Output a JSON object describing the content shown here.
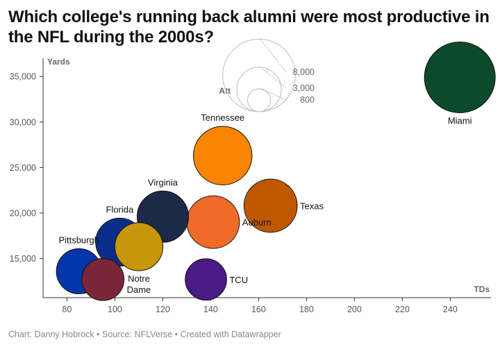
{
  "title": "Which college's running back alumni were most productive in the NFL during the 2000s?",
  "footer": "Chart: Danny Hobrock • Source: NFLVerse • Created with Datawrapper",
  "chart_data": {
    "type": "scatter",
    "title": "Which college's running back alumni were most productive in the NFL during the 2000s?",
    "xlabel": "TDs",
    "ylabel": "Yards",
    "xlim": [
      70,
      257
    ],
    "ylim": [
      10700,
      37000
    ],
    "x_ticks": [
      80,
      100,
      120,
      140,
      160,
      180,
      200,
      220,
      240
    ],
    "y_ticks": [
      15000,
      20000,
      25000,
      30000,
      35000
    ],
    "grid": false,
    "size_legend": {
      "title": "Att",
      "values": [
        8000,
        3000,
        800
      ],
      "labels": [
        "8,000",
        "3,000",
        "800"
      ]
    },
    "points": [
      {
        "label": "Miami",
        "x": 244,
        "y": 34900,
        "att": 7600,
        "color": "#0c4a2c",
        "label_pos": "below"
      },
      {
        "label": "Tennessee",
        "x": 145,
        "y": 26300,
        "att": 5200,
        "color": "#fb8500",
        "label_pos": "above"
      },
      {
        "label": "Texas",
        "x": 165,
        "y": 20800,
        "att": 4300,
        "color": "#c05800",
        "label_pos": "right"
      },
      {
        "label": "Virginia",
        "x": 120,
        "y": 19600,
        "att": 4000,
        "color": "#1c2a48",
        "label_pos": "above"
      },
      {
        "label": "Auburn",
        "x": 141,
        "y": 19000,
        "att": 4200,
        "color": "#f06a28",
        "label_pos": "right"
      },
      {
        "label": "Florida",
        "x": 102,
        "y": 16800,
        "att": 3500,
        "color": "#0a2e8a",
        "label_pos": "above"
      },
      {
        "label": "Notre Dame",
        "x": 110,
        "y": 16300,
        "att": 3500,
        "color": "#c8960a",
        "label_pos": "below"
      },
      {
        "label": "Pittsburgh",
        "x": 85,
        "y": 13600,
        "att": 3100,
        "color": "#0336a8",
        "label_pos": "above"
      },
      {
        "label": "",
        "x": 95,
        "y": 12700,
        "att": 2700,
        "color": "#7b2638",
        "label_pos": "none"
      },
      {
        "label": "TCU",
        "x": 138,
        "y": 12700,
        "att": 2600,
        "color": "#4a1a85",
        "label_pos": "right"
      }
    ]
  }
}
